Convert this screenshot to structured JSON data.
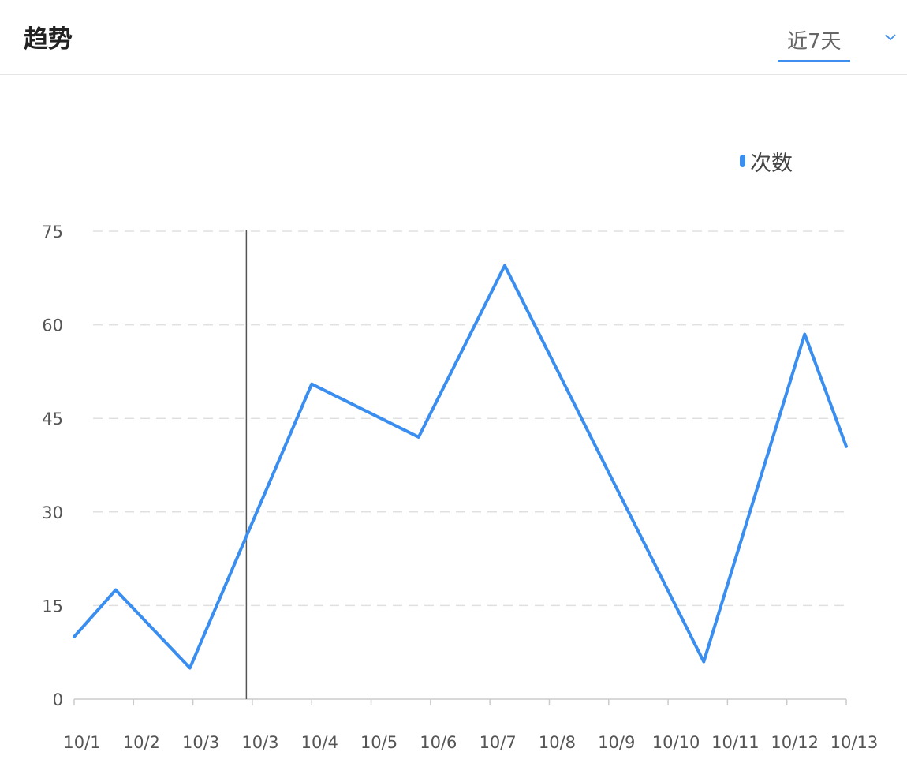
{
  "header": {
    "title": "趋势",
    "range_select": {
      "value": "近7天",
      "icon": "chevron-down-icon"
    }
  },
  "colors": {
    "line": "#3a8ef0",
    "accent": "#3f8ff0",
    "grid": "#e0e0e0",
    "axis": "#cccccc",
    "cursor": "#555555",
    "text": "#555555"
  },
  "chart_data": {
    "type": "line",
    "categories": [
      "10/1",
      "10/2",
      "10/3",
      "10/3",
      "10/4",
      "10/5",
      "10/6",
      "10/7",
      "10/8",
      "10/9",
      "10/10",
      "10/11",
      "10/12",
      "10/13"
    ],
    "series": [
      {
        "name": "次数",
        "points": [
          {
            "x": 0.0,
            "y": 10
          },
          {
            "x": 0.7,
            "y": 17.5
          },
          {
            "x": 1.95,
            "y": 5
          },
          {
            "x": 4.0,
            "y": 50.5
          },
          {
            "x": 5.8,
            "y": 42
          },
          {
            "x": 7.25,
            "y": 69.5
          },
          {
            "x": 10.6,
            "y": 6
          },
          {
            "x": 12.3,
            "y": 58.5
          },
          {
            "x": 13.0,
            "y": 40.5
          }
        ]
      }
    ],
    "y_ticks": [
      0,
      15,
      30,
      45,
      60,
      75
    ],
    "ylim": [
      0,
      75
    ],
    "hover_x": 2.9,
    "grid": "horizontal-dashed",
    "legend": "top-right"
  }
}
